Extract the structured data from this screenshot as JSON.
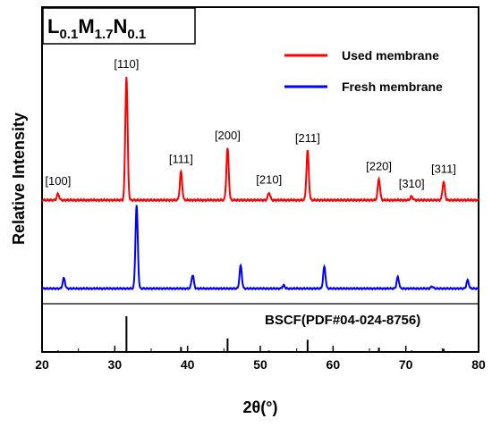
{
  "chart_data": {
    "type": "line",
    "xlabel": "2θ(°)",
    "ylabel": "Relative Intensity",
    "xlim": [
      20,
      80
    ],
    "x_ticks": [
      "20",
      "30",
      "40",
      "50",
      "60",
      "70",
      "80"
    ],
    "formula": {
      "L": "L",
      "L_sub": "0.1",
      "M": "M",
      "M_sub": "1.7",
      "N": "N",
      "N_sub": "0.1"
    },
    "legend": {
      "placement": "top-right",
      "entries": [
        {
          "label": "Used membrane",
          "color": "#ff0000"
        },
        {
          "label": "Fresh membrane",
          "color": "#0000ff"
        }
      ]
    },
    "series": [
      {
        "name": "Used membrane",
        "color": "#ff0000",
        "baseline": 0,
        "peaks": [
          {
            "x": 22.2,
            "h": 5
          },
          {
            "x": 31.6,
            "h": 100
          },
          {
            "x": 39.1,
            "h": 23
          },
          {
            "x": 45.5,
            "h": 42
          },
          {
            "x": 51.2,
            "h": 6
          },
          {
            "x": 56.5,
            "h": 40
          },
          {
            "x": 66.3,
            "h": 17
          },
          {
            "x": 70.8,
            "h": 3
          },
          {
            "x": 75.2,
            "h": 15
          }
        ]
      },
      {
        "name": "Fresh membrane",
        "color": "#0000ff",
        "baseline": 0,
        "peaks": [
          {
            "x": 23.0,
            "h": 10
          },
          {
            "x": 33.0,
            "h": 80
          },
          {
            "x": 40.7,
            "h": 13
          },
          {
            "x": 47.3,
            "h": 22
          },
          {
            "x": 53.2,
            "h": 3
          },
          {
            "x": 58.8,
            "h": 21
          },
          {
            "x": 68.9,
            "h": 11
          },
          {
            "x": 73.6,
            "h": 2
          },
          {
            "x": 78.5,
            "h": 8
          }
        ]
      }
    ],
    "peak_labels": [
      {
        "text": "[100]",
        "x": 22.2
      },
      {
        "text": "[110]",
        "x": 31.6
      },
      {
        "text": "[111]",
        "x": 39.1
      },
      {
        "text": "[200]",
        "x": 45.5
      },
      {
        "text": "[210]",
        "x": 51.2
      },
      {
        "text": "[211]",
        "x": 56.5
      },
      {
        "text": "[220]",
        "x": 66.3
      },
      {
        "text": "[310]",
        "x": 70.8
      },
      {
        "text": "[311]",
        "x": 75.2
      }
    ],
    "reference": {
      "label": "BSCF(PDF#04-024-8756)",
      "lines": [
        {
          "x": 22.2,
          "h": 4
        },
        {
          "x": 31.6,
          "h": 100
        },
        {
          "x": 39.1,
          "h": 14
        },
        {
          "x": 45.5,
          "h": 38
        },
        {
          "x": 51.2,
          "h": 4
        },
        {
          "x": 56.5,
          "h": 34
        },
        {
          "x": 66.3,
          "h": 12
        },
        {
          "x": 70.8,
          "h": 4
        },
        {
          "x": 75.2,
          "h": 9
        }
      ]
    }
  }
}
